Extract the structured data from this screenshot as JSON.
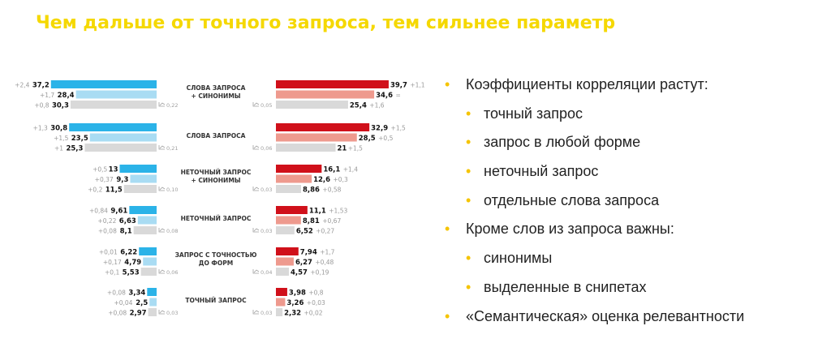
{
  "title": "Чем дальше от точного запроса, тем сильнее параметр",
  "colors": {
    "title": "#f5d800",
    "left": [
      "#2bb3e8",
      "#a9dcf3",
      "#d9d9d9"
    ],
    "right": [
      "#d0101a",
      "#ee9a8e",
      "#d9d9d9"
    ],
    "bullet": "#f5c400"
  },
  "bullets": [
    {
      "level": 1,
      "text": "Коэффициенты корреляции растут:"
    },
    {
      "level": 2,
      "text": "точный запрос"
    },
    {
      "level": 2,
      "text": "запрос в любой форме"
    },
    {
      "level": 2,
      "text": "неточный запрос"
    },
    {
      "level": 2,
      "text": "отдельные слова запроса"
    },
    {
      "level": 1,
      "text": "Кроме слов из запроса важны:"
    },
    {
      "level": 2,
      "text": "синонимы"
    },
    {
      "level": 2,
      "text": "выделенные в снипетах"
    },
    {
      "level": 1,
      "text": "«Семантическая» оценка релевантности"
    }
  ],
  "chart_data": {
    "type": "bar",
    "orientation": "horizontal",
    "layout": "mirrored",
    "groups": [
      {
        "category": [
          "СЛОВА ЗАПРОСА",
          "+ СИНОНИМЫ"
        ],
        "left": {
          "values": [
            37.2,
            28.4,
            30.3
          ],
          "labels": [
            "37,2",
            "28,4",
            "30,3"
          ],
          "deltas": [
            "+2,4",
            "+1,7",
            "+0,8"
          ],
          "note": "0,22"
        },
        "right": {
          "values": [
            39.7,
            34.6,
            25.4
          ],
          "labels": [
            "39,7",
            "34,6",
            "25,4"
          ],
          "deltas": [
            "+1,1",
            "=",
            "+1,6"
          ],
          "note": "0,05"
        }
      },
      {
        "category": [
          "СЛОВА ЗАПРОСА"
        ],
        "left": {
          "values": [
            30.8,
            23.5,
            25.3
          ],
          "labels": [
            "30,8",
            "23,5",
            "25,3"
          ],
          "deltas": [
            "+1,3",
            "+1,5",
            "+1"
          ],
          "note": "0,21"
        },
        "right": {
          "values": [
            32.9,
            28.5,
            21
          ],
          "labels": [
            "32,9",
            "28,5",
            "21"
          ],
          "deltas": [
            "+1,5",
            "+0,5",
            "+1,5"
          ],
          "note": "0,06"
        }
      },
      {
        "category": [
          "НЕТОЧНЫЙ ЗАПРОС",
          "+ СИНОНИМЫ"
        ],
        "left": {
          "values": [
            13,
            9.3,
            11.5
          ],
          "labels": [
            "13",
            "9,3",
            "11,5"
          ],
          "deltas": [
            "+0,5",
            "+0,37",
            "+0,2"
          ],
          "note": "0,10"
        },
        "right": {
          "values": [
            16.1,
            12.6,
            8.86
          ],
          "labels": [
            "16,1",
            "12,6",
            "8,86"
          ],
          "deltas": [
            "+1,4",
            "+0,3",
            "+0,58"
          ],
          "note": "0,03"
        }
      },
      {
        "category": [
          "НЕТОЧНЫЙ ЗАПРОС"
        ],
        "left": {
          "values": [
            9.61,
            6.63,
            8.1
          ],
          "labels": [
            "9,61",
            "6,63",
            "8,1"
          ],
          "deltas": [
            "+0,84",
            "+0,22",
            "+0,08"
          ],
          "note": "0,08"
        },
        "right": {
          "values": [
            11.1,
            8.81,
            6.52
          ],
          "labels": [
            "11,1",
            "8,81",
            "6,52"
          ],
          "deltas": [
            "+1,53",
            "+0,67",
            "+0,27"
          ],
          "note": "0,03"
        }
      },
      {
        "category": [
          "ЗАПРОС С ТОЧНОСТЬЮ",
          "ДО ФОРМ"
        ],
        "left": {
          "values": [
            6.22,
            4.79,
            5.53
          ],
          "labels": [
            "6,22",
            "4,79",
            "5,53"
          ],
          "deltas": [
            "+0,01",
            "+0,17",
            "+0,1"
          ],
          "note": "0,06"
        },
        "right": {
          "values": [
            7.94,
            6.27,
            4.57
          ],
          "labels": [
            "7,94",
            "6,27",
            "4,57"
          ],
          "deltas": [
            "+1,7",
            "+0,48",
            "+0,19"
          ],
          "note": "0,04"
        }
      },
      {
        "category": [
          "ТОЧНЫЙ ЗАПРОС"
        ],
        "left": {
          "values": [
            3.34,
            2.5,
            2.97
          ],
          "labels": [
            "3,34",
            "2,5",
            "2,97"
          ],
          "deltas": [
            "+0,08",
            "+0,04",
            "+0,08"
          ],
          "note": "0,03"
        },
        "right": {
          "values": [
            3.98,
            3.26,
            2.32
          ],
          "labels": [
            "3,98",
            "3,26",
            "2,32"
          ],
          "deltas": [
            "+0,8",
            "+0,03",
            "+0,02"
          ],
          "note": "0,03"
        }
      }
    ],
    "title": "",
    "xlabel": "",
    "ylabel": "",
    "xlim": [
      0,
      40
    ],
    "grid": false,
    "legend": "none"
  }
}
